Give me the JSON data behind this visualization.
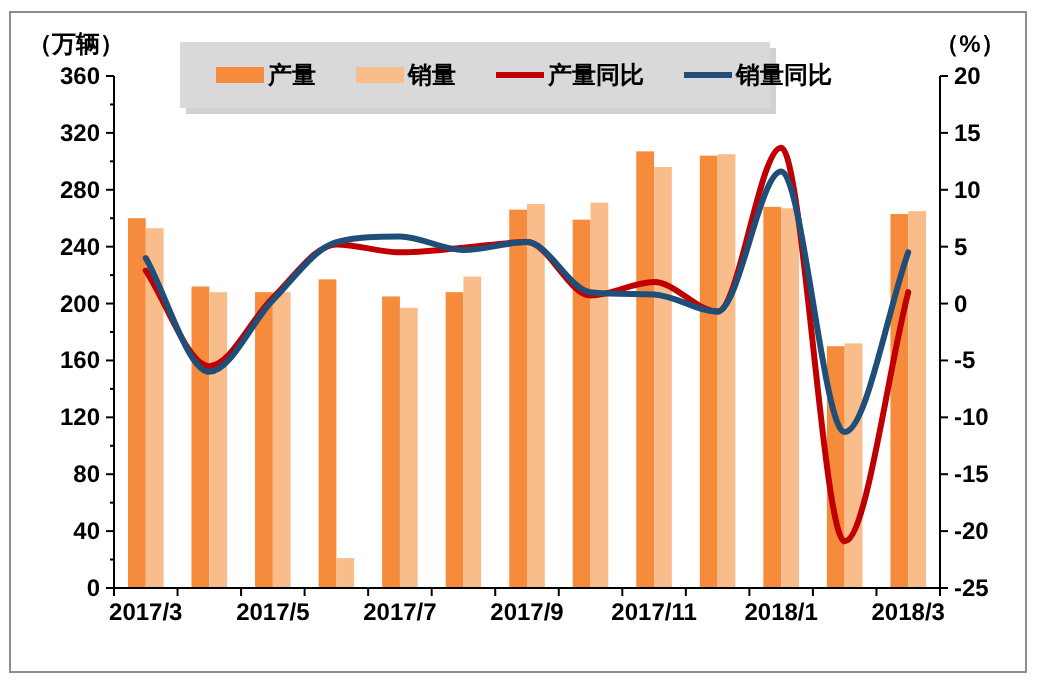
{
  "chart_data": {
    "type": "bar",
    "ylabel": "（万辆）",
    "y2label": "（%）",
    "categories": [
      "2017/3",
      null,
      "2017/5",
      null,
      "2017/7",
      null,
      "2017/9",
      null,
      "2017/11",
      null,
      "2018/1",
      null,
      "2018/3"
    ],
    "series": [
      {
        "name": "产量",
        "color": "#f68b3c",
        "values": [
          260,
          212,
          208,
          217,
          205,
          208,
          266,
          259,
          307,
          304,
          268,
          170,
          263
        ]
      },
      {
        "name": "销量",
        "color": "#f9bd8c",
        "values": [
          253,
          208,
          208,
          21,
          197,
          219,
          270,
          271,
          296,
          305,
          267,
          172,
          265
        ]
      },
      {
        "name": "产量同比",
        "type": "line",
        "axis": "y2",
        "color": "#c00000",
        "values": [
          2.9,
          -5.5,
          0.5,
          5.2,
          4.5,
          4.9,
          5.4,
          0.7,
          1.9,
          -0.7,
          13.7,
          -20.9,
          1.0
        ]
      },
      {
        "name": "销量同比",
        "type": "line",
        "axis": "y2",
        "color": "#1f4e79",
        "values": [
          4.0,
          -6.0,
          0.3,
          5.4,
          5.9,
          4.7,
          5.4,
          1.0,
          0.8,
          -0.7,
          11.6,
          -11.3,
          4.5
        ]
      }
    ],
    "ylim": [
      0,
      360
    ],
    "yticks": [
      0,
      40,
      80,
      120,
      160,
      200,
      240,
      280,
      320,
      360
    ],
    "y2lim": [
      -25,
      20
    ],
    "y2ticks": [
      -25,
      -20,
      -15,
      -10,
      -5,
      0,
      5,
      10,
      15,
      20
    ],
    "grid": false,
    "legend": "top"
  }
}
